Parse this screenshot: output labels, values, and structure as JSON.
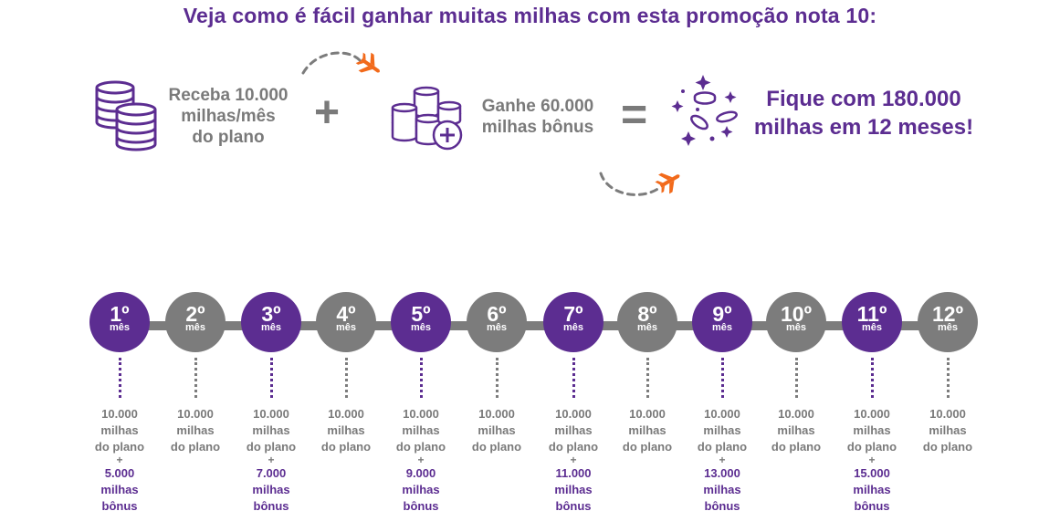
{
  "title": "Veja como é fácil ganhar muitas milhas com esta promoção nota 10:",
  "step1": {
    "line1": "Receba 10.000",
    "line2": "milhas/mês",
    "line3": "do plano"
  },
  "step2": {
    "line1": "Ganhe 60.000",
    "line2": "milhas bônus"
  },
  "result": {
    "line1": "Fique com 180.000",
    "line2": "milhas em 12 meses!"
  },
  "plus_sign": "+",
  "equals_sign": "=",
  "mes_label": "mês",
  "months": [
    {
      "num": "1º",
      "l1": "10.000",
      "l2": "milhas",
      "l3": "do plano",
      "plus": "+",
      "b1": "5.000",
      "b2": "milhas",
      "b3": "bônus"
    },
    {
      "num": "2º",
      "l1": "10.000",
      "l2": "milhas",
      "l3": "do plano"
    },
    {
      "num": "3º",
      "l1": "10.000",
      "l2": "milhas",
      "l3": "do plano",
      "plus": "+",
      "b1": "7.000",
      "b2": "milhas",
      "b3": "bônus"
    },
    {
      "num": "4º",
      "l1": "10.000",
      "l2": "milhas",
      "l3": "do plano"
    },
    {
      "num": "5º",
      "l1": "10.000",
      "l2": "milhas",
      "l3": "do plano",
      "plus": "+",
      "b1": "9.000",
      "b2": "milhas",
      "b3": "bônus"
    },
    {
      "num": "6º",
      "l1": "10.000",
      "l2": "milhas",
      "l3": "do plano"
    },
    {
      "num": "7º",
      "l1": "10.000",
      "l2": "milhas",
      "l3": "do plano",
      "plus": "+",
      "b1": "11.000",
      "b2": "milhas",
      "b3": "bônus"
    },
    {
      "num": "8º",
      "l1": "10.000",
      "l2": "milhas",
      "l3": "do plano"
    },
    {
      "num": "9º",
      "l1": "10.000",
      "l2": "milhas",
      "l3": "do plano",
      "plus": "+",
      "b1": "13.000",
      "b2": "milhas",
      "b3": "bônus"
    },
    {
      "num": "10º",
      "l1": "10.000",
      "l2": "milhas",
      "l3": "do plano"
    },
    {
      "num": "11º",
      "l1": "10.000",
      "l2": "milhas",
      "l3": "do plano",
      "plus": "+",
      "b1": "15.000",
      "b2": "milhas",
      "b3": "bônus"
    },
    {
      "num": "12º",
      "l1": "10.000",
      "l2": "milhas",
      "l3": "do plano"
    }
  ],
  "colors": {
    "purple": "#5c2d91",
    "grey": "#7c7c7c",
    "orange": "#f26a1b"
  },
  "icons": [
    "coins-stack-icon",
    "airplane-icon",
    "coins-plus-icon",
    "sparkle-coins-icon"
  ]
}
